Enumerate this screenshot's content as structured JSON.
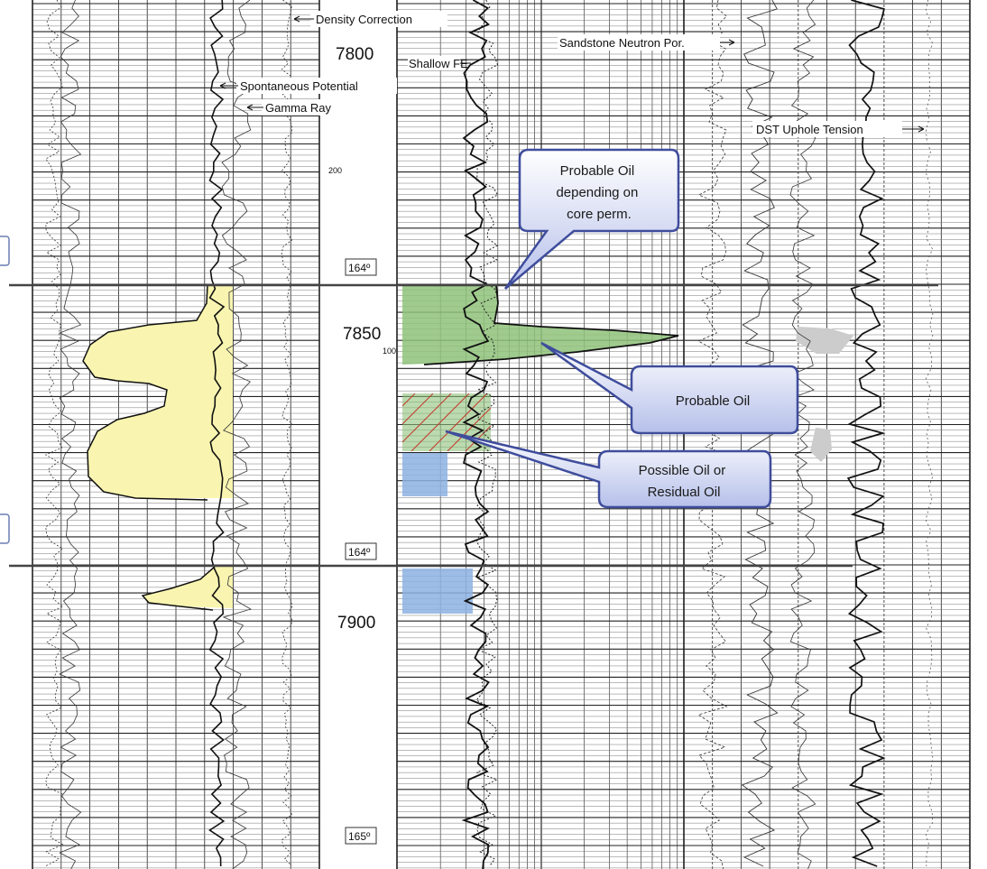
{
  "depth_labels": [
    "7800",
    "7850",
    "7900"
  ],
  "scale_labels": [
    "200",
    "100"
  ],
  "temperature_labels": [
    "164º",
    "164º",
    "165º"
  ],
  "curve_labels": {
    "density_correction": "Density Correction",
    "shallow_fe": "Shallow FE",
    "spontaneous_potential": "Spontaneous Potential",
    "gamma_ray": "Gamma Ray",
    "sandstone_neutron_por": "Sandstone Neutron Por.",
    "dst_uphole_tension": "DST Uphole Tension"
  },
  "callouts": {
    "probable_oil_core": [
      "Probable Oil",
      "depending on",
      "core perm."
    ],
    "probable_oil": "Probable Oil",
    "possible_oil": [
      "Possible Oil or",
      "Residual Oil"
    ]
  },
  "colors": {
    "sand_fill": "#f9f5b0",
    "oil_fill": "#8fc27a",
    "water_fill": "#8db2e2",
    "callout_fill": "#c3cbee",
    "callout_border": "#3f4d9c",
    "zone_line": "#444444"
  }
}
